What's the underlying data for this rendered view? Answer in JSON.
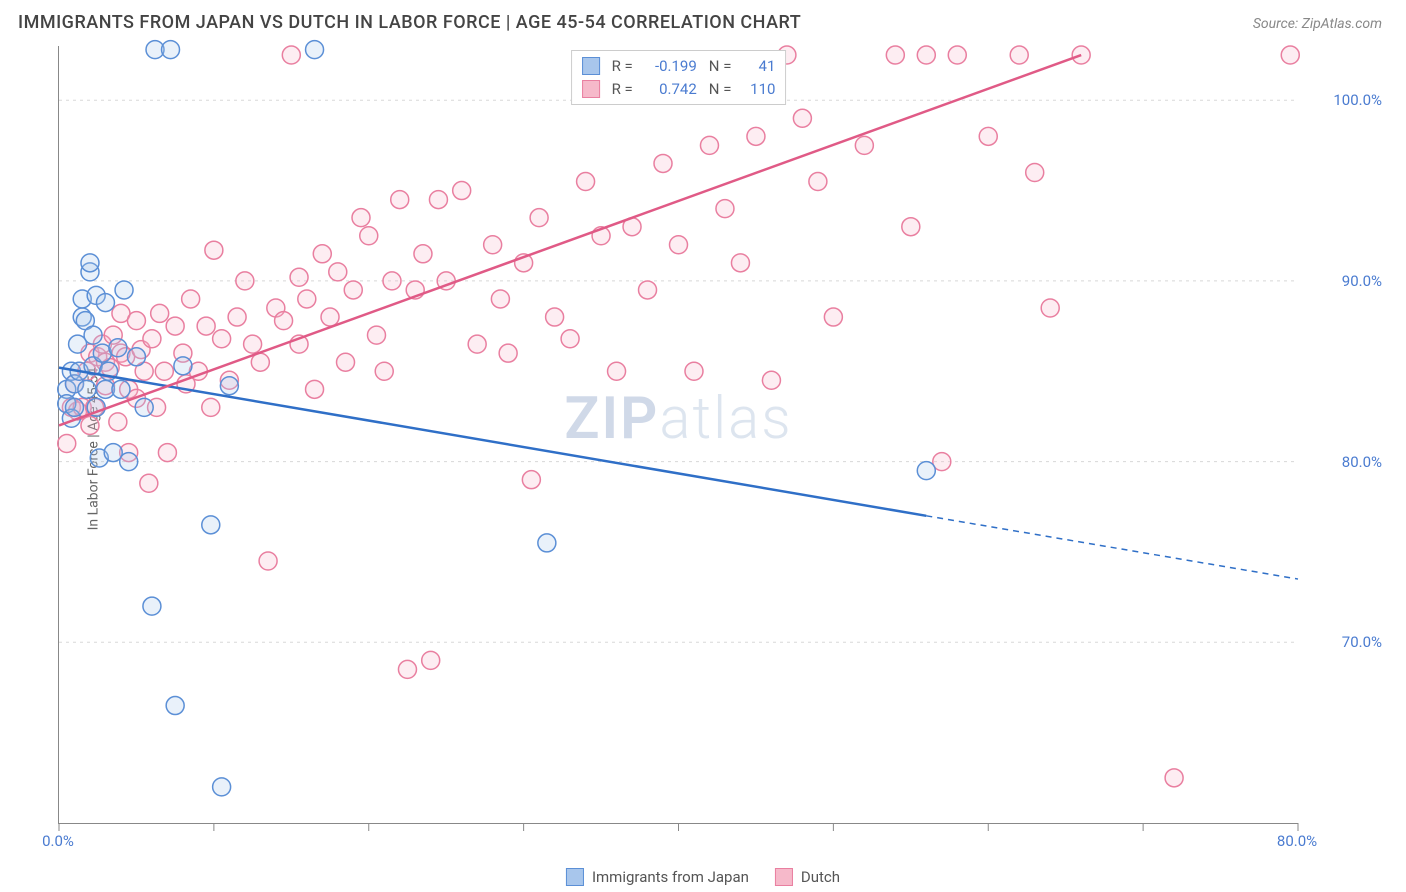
{
  "header": {
    "title": "IMMIGRANTS FROM JAPAN VS DUTCH IN LABOR FORCE | AGE 45-54 CORRELATION CHART",
    "source": "Source: ZipAtlas.com"
  },
  "chart": {
    "type": "scatter",
    "ylabel": "In Labor Force | Age 45-54",
    "watermark": "ZIPatlas",
    "background_color": "#ffffff",
    "grid_color": "#d8d8d8",
    "axis_color": "#888888",
    "text_color": "#666666",
    "xlim": [
      0,
      80
    ],
    "ylim": [
      60,
      103
    ],
    "xticks": [
      {
        "v": 0,
        "label": "0.0%"
      },
      {
        "v": 10,
        "label": ""
      },
      {
        "v": 20,
        "label": ""
      },
      {
        "v": 30,
        "label": ""
      },
      {
        "v": 40,
        "label": ""
      },
      {
        "v": 50,
        "label": ""
      },
      {
        "v": 60,
        "label": ""
      },
      {
        "v": 70,
        "label": ""
      },
      {
        "v": 80,
        "label": "80.0%"
      }
    ],
    "yticks": [
      {
        "v": 70,
        "label": "70.0%"
      },
      {
        "v": 80,
        "label": "80.0%"
      },
      {
        "v": 90,
        "label": "90.0%"
      },
      {
        "v": 100,
        "label": "100.0%"
      }
    ],
    "xtick_color": "#4a7bd0",
    "ytick_color": "#4a7bd0",
    "marker_radius": 9,
    "marker_stroke_width": 1.5,
    "marker_fill_opacity": 0.25,
    "regression_line_width": 2.5,
    "series": [
      {
        "name": "Immigrants from Japan",
        "color_stroke": "#5b8fd6",
        "color_fill": "#a8c6ec",
        "line_color": "#2f6fc7",
        "R": "-0.199",
        "N": "41",
        "regression": {
          "x1": 0,
          "y1": 85.2,
          "x2": 56,
          "y2": 77.0,
          "dash_x2": 80,
          "dash_y2": 73.5
        },
        "points": [
          [
            0.5,
            84.0
          ],
          [
            0.5,
            83.2
          ],
          [
            0.8,
            85.0
          ],
          [
            0.8,
            82.4
          ],
          [
            1.0,
            84.3
          ],
          [
            1.0,
            83.0
          ],
          [
            1.2,
            86.5
          ],
          [
            1.3,
            85.0
          ],
          [
            1.5,
            88.0
          ],
          [
            1.5,
            89.0
          ],
          [
            1.7,
            87.8
          ],
          [
            1.8,
            84.0
          ],
          [
            2.0,
            90.5
          ],
          [
            2.0,
            91.0
          ],
          [
            2.2,
            87.0
          ],
          [
            2.2,
            85.3
          ],
          [
            2.4,
            89.2
          ],
          [
            2.4,
            83.0
          ],
          [
            2.6,
            80.2
          ],
          [
            2.8,
            86.0
          ],
          [
            3.0,
            84.0
          ],
          [
            3.0,
            88.8
          ],
          [
            3.2,
            85.0
          ],
          [
            3.5,
            80.5
          ],
          [
            3.8,
            86.3
          ],
          [
            4.0,
            84.0
          ],
          [
            4.2,
            89.5
          ],
          [
            4.5,
            80.0
          ],
          [
            5.0,
            85.8
          ],
          [
            5.5,
            83.0
          ],
          [
            6.0,
            72.0
          ],
          [
            6.2,
            102.8
          ],
          [
            7.2,
            102.8
          ],
          [
            7.5,
            66.5
          ],
          [
            8.0,
            85.3
          ],
          [
            9.8,
            76.5
          ],
          [
            10.5,
            62.0
          ],
          [
            11.0,
            84.2
          ],
          [
            16.5,
            102.8
          ],
          [
            31.5,
            75.5
          ],
          [
            56.0,
            79.5
          ]
        ]
      },
      {
        "name": "Dutch",
        "color_stroke": "#e97fa0",
        "color_fill": "#f6b9ca",
        "line_color": "#e05a86",
        "R": "0.742",
        "N": "110",
        "regression": {
          "x1": 0,
          "y1": 82.0,
          "x2": 66,
          "y2": 102.5
        },
        "points": [
          [
            0.5,
            81.0
          ],
          [
            0.8,
            83.0
          ],
          [
            1.0,
            84.3
          ],
          [
            1.2,
            82.8
          ],
          [
            1.5,
            83.0
          ],
          [
            1.8,
            85.0
          ],
          [
            2.0,
            82.0
          ],
          [
            2.0,
            86.0
          ],
          [
            2.3,
            83.0
          ],
          [
            2.5,
            85.8
          ],
          [
            2.8,
            86.5
          ],
          [
            3.0,
            85.5
          ],
          [
            3.0,
            84.2
          ],
          [
            3.3,
            85.2
          ],
          [
            3.5,
            87.0
          ],
          [
            3.8,
            82.2
          ],
          [
            4.0,
            88.2
          ],
          [
            4.0,
            86.0
          ],
          [
            4.3,
            85.8
          ],
          [
            4.5,
            84.0
          ],
          [
            4.5,
            80.5
          ],
          [
            5.0,
            87.8
          ],
          [
            5.0,
            83.5
          ],
          [
            5.3,
            86.2
          ],
          [
            5.5,
            85.0
          ],
          [
            5.8,
            78.8
          ],
          [
            6.0,
            86.8
          ],
          [
            6.3,
            83.0
          ],
          [
            6.5,
            88.2
          ],
          [
            6.8,
            85.0
          ],
          [
            7.0,
            80.5
          ],
          [
            7.5,
            87.5
          ],
          [
            8.0,
            86.0
          ],
          [
            8.2,
            84.3
          ],
          [
            8.5,
            89.0
          ],
          [
            9.0,
            85.0
          ],
          [
            9.5,
            87.5
          ],
          [
            9.8,
            83.0
          ],
          [
            10.0,
            91.7
          ],
          [
            10.5,
            86.8
          ],
          [
            11.0,
            84.5
          ],
          [
            11.5,
            88.0
          ],
          [
            12.0,
            90.0
          ],
          [
            12.5,
            86.5
          ],
          [
            13.0,
            85.5
          ],
          [
            13.5,
            74.5
          ],
          [
            14.0,
            88.5
          ],
          [
            14.5,
            87.8
          ],
          [
            15.0,
            102.5
          ],
          [
            15.5,
            86.5
          ],
          [
            15.5,
            90.2
          ],
          [
            16.0,
            89.0
          ],
          [
            16.5,
            84.0
          ],
          [
            17.0,
            91.5
          ],
          [
            17.5,
            88.0
          ],
          [
            18.0,
            90.5
          ],
          [
            18.5,
            85.5
          ],
          [
            19.0,
            89.5
          ],
          [
            19.5,
            93.5
          ],
          [
            20.0,
            92.5
          ],
          [
            20.5,
            87.0
          ],
          [
            21.0,
            85.0
          ],
          [
            21.5,
            90.0
          ],
          [
            22.0,
            94.5
          ],
          [
            22.5,
            68.5
          ],
          [
            23.0,
            89.5
          ],
          [
            23.5,
            91.5
          ],
          [
            24.0,
            69.0
          ],
          [
            24.5,
            94.5
          ],
          [
            25.0,
            90.0
          ],
          [
            26.0,
            95.0
          ],
          [
            27.0,
            86.5
          ],
          [
            28.0,
            92.0
          ],
          [
            28.5,
            89.0
          ],
          [
            29.0,
            86.0
          ],
          [
            30.0,
            91.0
          ],
          [
            30.5,
            79.0
          ],
          [
            31.0,
            93.5
          ],
          [
            32.0,
            88.0
          ],
          [
            33.0,
            86.8
          ],
          [
            34.0,
            95.5
          ],
          [
            35.0,
            92.5
          ],
          [
            36.0,
            85.0
          ],
          [
            37.0,
            93.0
          ],
          [
            38.0,
            89.5
          ],
          [
            39.0,
            96.5
          ],
          [
            40.0,
            92.0
          ],
          [
            41.0,
            85.0
          ],
          [
            42.0,
            97.5
          ],
          [
            43.0,
            94.0
          ],
          [
            44.0,
            91.0
          ],
          [
            45.0,
            98.0
          ],
          [
            46.0,
            84.5
          ],
          [
            47.0,
            102.5
          ],
          [
            48.0,
            99.0
          ],
          [
            49.0,
            95.5
          ],
          [
            50.0,
            88.0
          ],
          [
            52.0,
            97.5
          ],
          [
            54.0,
            102.5
          ],
          [
            55.0,
            93.0
          ],
          [
            56.0,
            102.5
          ],
          [
            57.0,
            80.0
          ],
          [
            58.0,
            102.5
          ],
          [
            60.0,
            98.0
          ],
          [
            62.0,
            102.5
          ],
          [
            63.0,
            96.0
          ],
          [
            64.0,
            88.5
          ],
          [
            66.0,
            102.5
          ],
          [
            72.0,
            62.5
          ],
          [
            79.5,
            102.5
          ]
        ]
      }
    ],
    "legend_stats": {
      "r_label": "R =",
      "n_label": "N ="
    },
    "legend_bottom": [
      {
        "label": "Immigrants from Japan",
        "swatch_fill": "#a8c6ec",
        "swatch_stroke": "#5b8fd6"
      },
      {
        "label": "Dutch",
        "swatch_fill": "#f6b9ca",
        "swatch_stroke": "#e97fa0"
      }
    ]
  }
}
